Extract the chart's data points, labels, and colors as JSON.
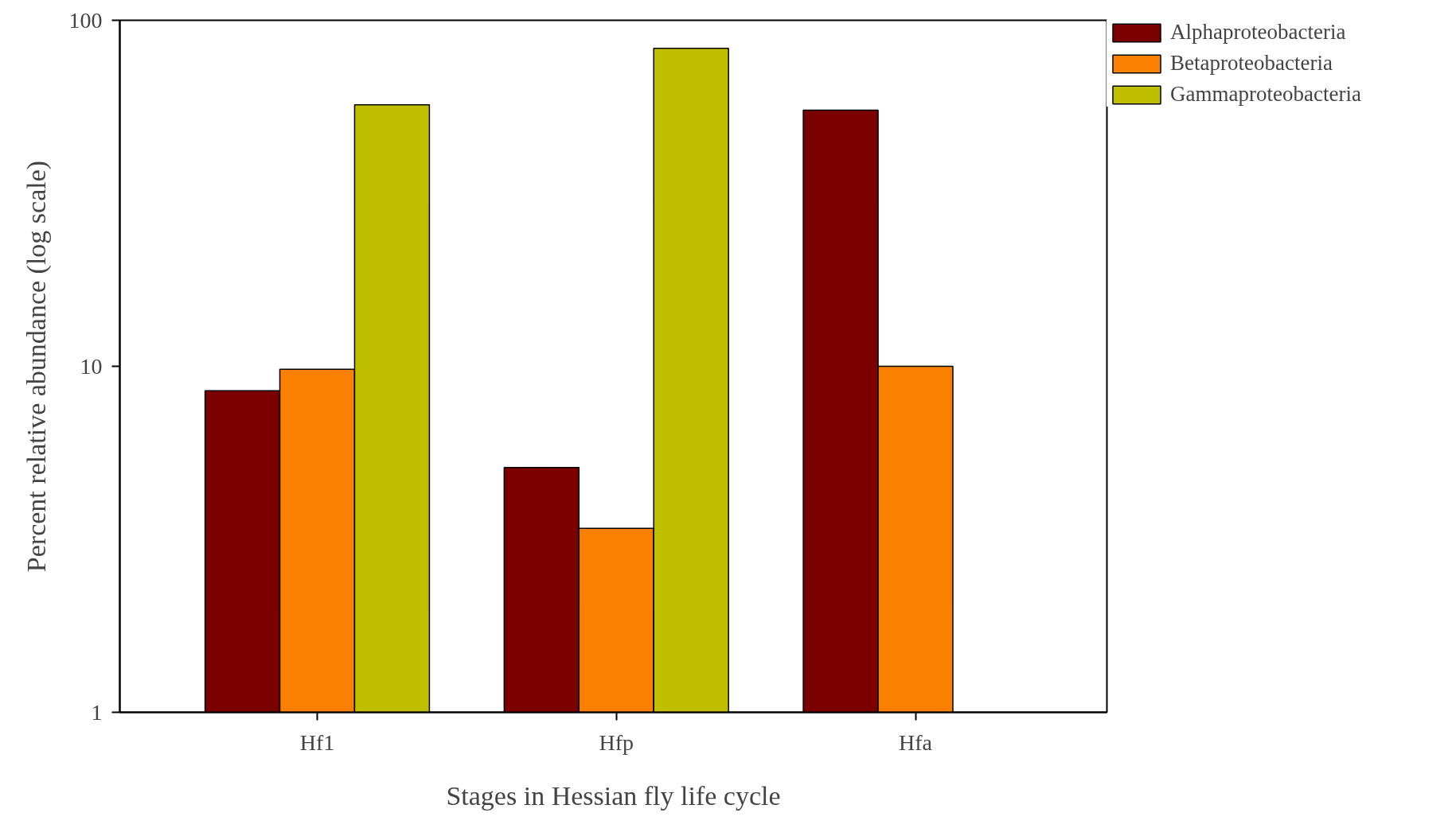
{
  "chart_data": {
    "type": "bar",
    "xlabel": "Stages in Hessian fly life cycle",
    "ylabel": "Percent relative abundance (log scale)",
    "categories": [
      "Hf1",
      "Hfp",
      "Hfa"
    ],
    "series": [
      {
        "name": "Alphaproteobacteria",
        "color": "#7b0000",
        "values": [
          8.5,
          5.1,
          55
        ]
      },
      {
        "name": "Betaproteobacteria",
        "color": "#f98000",
        "values": [
          9.8,
          3.4,
          10
        ]
      },
      {
        "name": "Gammaproteobacteria",
        "color": "#bfbf00",
        "values": [
          57,
          83,
          null
        ]
      }
    ],
    "log": true,
    "ylim": [
      1,
      100
    ],
    "yticks": [
      1,
      10,
      100
    ],
    "grid": false,
    "legend": "top right"
  }
}
